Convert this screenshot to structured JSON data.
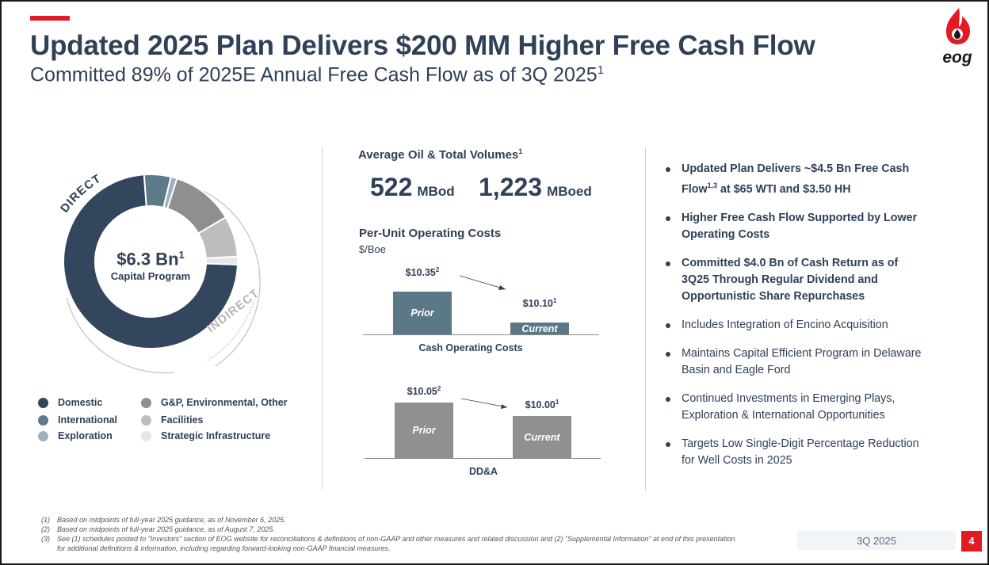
{
  "header": {
    "title": "Updated 2025 Plan Delivers $200 MM Higher Free Cash Flow",
    "subtitle": "Committed 89% of 2025E Annual Free Cash Flow as of 3Q 2025",
    "subtitle_sup": "1",
    "logo_text": "eog"
  },
  "capital": {
    "value": "$6.3 Bn",
    "value_sup": "1",
    "label": "Capital Program",
    "arc_direct": "DIRECT",
    "arc_indirect": "INDIRECT",
    "colors": {
      "domestic": "#34465e",
      "international": "#5d7a8a",
      "exploration": "#9fb1bf",
      "gp_env_other": "#8f8f8f",
      "facilities": "#bdbdbd",
      "strategic_infrastructure": "#e6e6e6"
    }
  },
  "legend": [
    {
      "label": "Domestic",
      "color": "#34465e"
    },
    {
      "label": "International",
      "color": "#5d7a8a"
    },
    {
      "label": "Exploration",
      "color": "#9fb1bf"
    },
    {
      "label": "G&P, Environmental, Other",
      "color": "#8f8f8f"
    },
    {
      "label": "Facilities",
      "color": "#bdbdbd"
    },
    {
      "label": "Strategic Infrastructure",
      "color": "#e6e6e6"
    }
  ],
  "volumes": {
    "heading": "Average Oil & Total Volumes",
    "heading_sup": "1",
    "oil_value": "522",
    "oil_unit": "MBod",
    "total_value": "1,223",
    "total_unit": "MBoed"
  },
  "costs": {
    "heading": "Per-Unit Operating Costs",
    "units": "$/Boe"
  },
  "chart_data": [
    {
      "type": "bar",
      "title": "",
      "xlabel": "Cash Operating Costs",
      "ylabel": "$/Boe",
      "categories": [
        "Prior",
        "Current"
      ],
      "values": [
        10.35,
        10.1
      ],
      "labels": [
        "$10.35",
        "$10.10"
      ],
      "label_sups": [
        "2",
        "1"
      ],
      "color": "#5b7887"
    },
    {
      "type": "bar",
      "title": "",
      "xlabel": "DD&A",
      "ylabel": "$/Boe",
      "categories": [
        "Prior",
        "Current"
      ],
      "values": [
        10.05,
        10.0
      ],
      "labels": [
        "$10.05",
        "$10.00"
      ],
      "label_sups": [
        "2",
        "1"
      ],
      "color": "#909090"
    }
  ],
  "bullets": [
    {
      "text": "Updated Plan Delivers ~$4.5 Bn Free Cash Flow",
      "sup": "1,3",
      "text_after": " at $65 WTI and $3.50 HH",
      "bold": true
    },
    {
      "text": "Higher Free Cash Flow Supported by Lower Operating Costs",
      "bold": true
    },
    {
      "text": "Committed $4.0 Bn of Cash Return as of 3Q25 Through Regular Dividend and Opportunistic Share Repurchases",
      "bold": true
    },
    {
      "text": "Includes Integration of Encino Acquisition",
      "bold": false
    },
    {
      "text": "Maintains Capital Efficient Program in Delaware Basin and Eagle Ford",
      "bold": false
    },
    {
      "text": "Continued Investments in Emerging Plays, Exploration & International Opportunities",
      "bold": false
    },
    {
      "text": "Targets Low Single-Digit Percentage Reduction for Well Costs in 2025",
      "bold": false
    }
  ],
  "footnotes": [
    {
      "num": "(1)",
      "text": "Based on midpoints of full-year 2025 guidance, as of November 6, 2025."
    },
    {
      "num": "(2)",
      "text": "Based on midpoints of full-year 2025 guidance, as of August 7, 2025."
    },
    {
      "num": "(3)",
      "text": "See (1) schedules posted to “Investors” section of EOG website for reconciliations & definitions of non-GAAP and other measures and related discussion and (2) “Supplemental Information” at end of this presentation for additional definitions & information, including regarding forward-looking non-GAAP financial measures."
    }
  ],
  "footer": {
    "period": "3Q 2025",
    "page": "4"
  }
}
